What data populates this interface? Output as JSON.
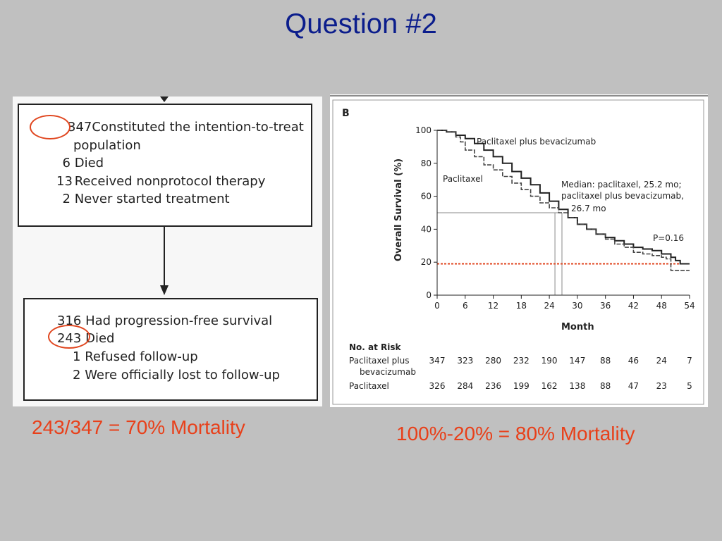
{
  "slide": {
    "title": "Question #2",
    "caption_left": "243/347 = 70% Mortality",
    "caption_right": "100%-20% = 80% Mortality"
  },
  "flowchart": {
    "box1": {
      "lines": [
        {
          "num": "347",
          "text": "Constituted the intention-to-treat"
        },
        {
          "num": "",
          "text": "population"
        },
        {
          "num": "6",
          "text": "Died"
        },
        {
          "num": "13",
          "text": "Received nonprotocol therapy"
        },
        {
          "num": "2",
          "text": "Never started treatment"
        }
      ]
    },
    "box2": {
      "lines": [
        {
          "num": "316",
          "text": "Had progression-free survival"
        },
        {
          "num": "243",
          "text": "Died"
        },
        {
          "num": "1",
          "text": "Refused follow-up"
        },
        {
          "num": "2",
          "text": "Were officially lost to follow-up"
        }
      ]
    }
  },
  "colors": {
    "title": "#0b1d8c",
    "caption": "#e8401a",
    "highlight": "#e0461f",
    "reference_line": "#e0461f"
  },
  "chart_data": {
    "type": "line",
    "panel_label": "B",
    "xlabel": "Month",
    "ylabel": "Overall Survival (%)",
    "xlim": [
      0,
      54
    ],
    "ylim": [
      0,
      100
    ],
    "xticks": [
      0,
      6,
      12,
      18,
      24,
      30,
      36,
      42,
      48,
      54
    ],
    "yticks": [
      0,
      20,
      40,
      60,
      80,
      100
    ],
    "series": [
      {
        "name": "Paclitaxel plus bevacizumab",
        "style": "solid",
        "x": [
          0,
          2,
          4,
          6,
          8,
          10,
          12,
          14,
          16,
          18,
          20,
          22,
          24,
          26,
          28,
          30,
          32,
          34,
          36,
          38,
          40,
          42,
          44,
          46,
          48,
          50,
          51,
          52,
          54
        ],
        "y": [
          100,
          99,
          97,
          95,
          92,
          88,
          84,
          80,
          75,
          71,
          67,
          62,
          57,
          52,
          47,
          43,
          40,
          37,
          35,
          33,
          31,
          29,
          28,
          27,
          25,
          23,
          21,
          19,
          19
        ]
      },
      {
        "name": "Paclitaxel",
        "style": "dashed",
        "x": [
          0,
          2,
          4,
          5,
          6,
          8,
          10,
          12,
          14,
          16,
          18,
          20,
          22,
          24,
          26,
          28,
          30,
          32,
          34,
          36,
          38,
          40,
          42,
          44,
          46,
          48,
          49,
          50,
          52,
          54
        ],
        "y": [
          100,
          99,
          96,
          93,
          88,
          84,
          79,
          76,
          72,
          68,
          64,
          60,
          56,
          53,
          50,
          47,
          43,
          40,
          37,
          34,
          31,
          29,
          26,
          25,
          24,
          23,
          22,
          15,
          15,
          15
        ]
      }
    ],
    "series_labels": [
      "Paclitaxel plus bevacizumab",
      "Paclitaxel"
    ],
    "median_annotation": [
      "Median: paclitaxel, 25.2 mo;",
      "paclitaxel plus bevacizumab,",
      "26.7 mo"
    ],
    "medians": {
      "survival_pct": 50,
      "paclitaxel": 25.2,
      "paclitaxel_plus_bevacizumab": 26.7
    },
    "p_value": "P=0.16",
    "reference_line_y": 19,
    "risk_table": {
      "header": "No. at Risk",
      "rows": [
        {
          "label": [
            "Paclitaxel plus",
            "bevacizumab"
          ],
          "values": [
            "347",
            "323",
            "280",
            "232",
            "190",
            "147",
            "88",
            "46",
            "24",
            "7"
          ]
        },
        {
          "label": [
            "Paclitaxel"
          ],
          "values": [
            "326",
            "284",
            "236",
            "199",
            "162",
            "138",
            "88",
            "47",
            "23",
            "5"
          ]
        }
      ]
    }
  }
}
